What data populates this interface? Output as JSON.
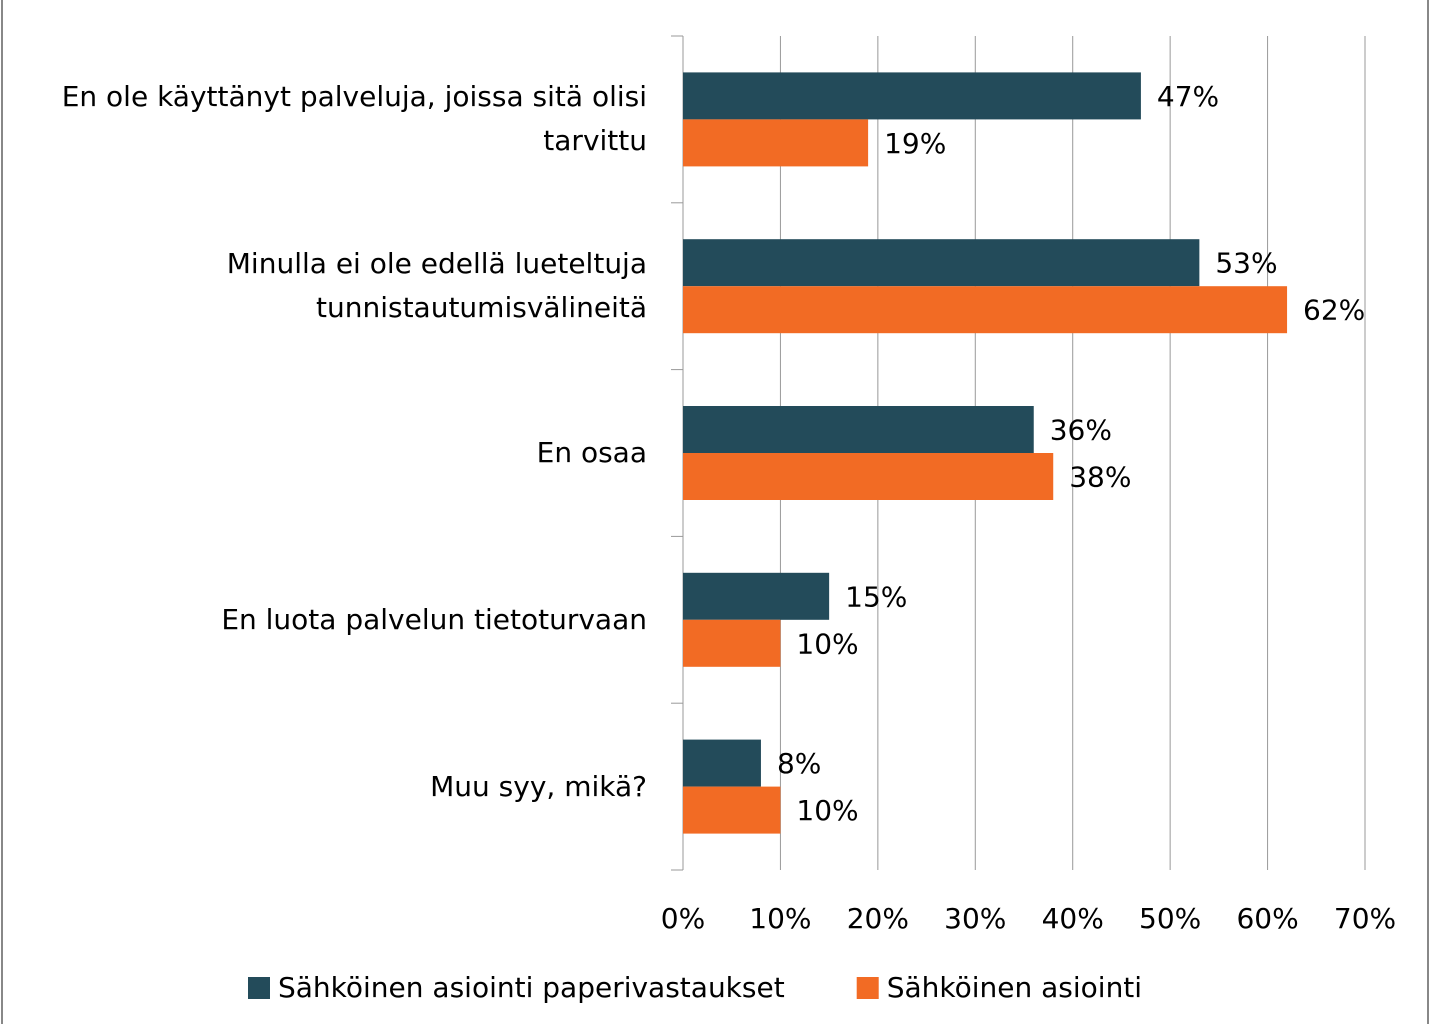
{
  "chart_data": {
    "type": "hbar",
    "categories": [
      "En ole käyttänyt palveluja, joissa sitä olisi tarvittu",
      "Minulla ei ole edellä lueteltuja tunnistautumisvälineitä",
      "En osaa",
      "En luota palvelun tietoturvaan",
      "Muu syy, mikä?"
    ],
    "series": [
      {
        "name": "Sähköinen asiointi paperivastaukset",
        "color": "#234b5a",
        "values": [
          47,
          53,
          36,
          15,
          8
        ],
        "value_labels": [
          "47%",
          "53%",
          "36%",
          "15%",
          "8%"
        ]
      },
      {
        "name": "Sähköinen asiointi",
        "color": "#f26b24",
        "values": [
          19,
          62,
          38,
          10,
          10
        ],
        "value_labels": [
          "19%",
          "62%",
          "38%",
          "10%",
          "10%"
        ]
      }
    ],
    "xlim": [
      0,
      70
    ],
    "xticks": [
      {
        "value": 0,
        "label": "0%"
      },
      {
        "value": 10,
        "label": "10%"
      },
      {
        "value": 20,
        "label": "20%"
      },
      {
        "value": 30,
        "label": "30%"
      },
      {
        "value": 40,
        "label": "40%"
      },
      {
        "value": 50,
        "label": "50%"
      },
      {
        "value": 60,
        "label": "60%"
      },
      {
        "value": 70,
        "label": "70%"
      }
    ],
    "grid": true,
    "legend": "bottom"
  }
}
